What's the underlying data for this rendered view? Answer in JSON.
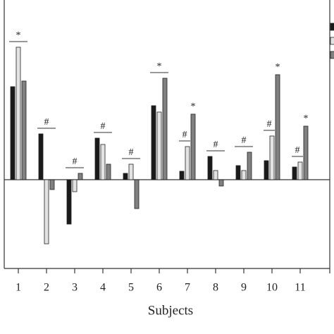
{
  "chart_data": {
    "type": "bar",
    "x_label": "Subjects",
    "categories": [
      "1",
      "2",
      "3",
      "4",
      "5",
      "6",
      "7",
      "8",
      "9",
      "10",
      "11"
    ],
    "series": [
      {
        "color": "#1a1a1a",
        "values": [
          13.2,
          6.5,
          -6.3,
          5.9,
          0.9,
          10.5,
          1.2,
          3.3,
          2.0,
          2.7,
          1.8
        ]
      },
      {
        "color": "#e3e3e3",
        "values": [
          18.8,
          -9.1,
          -1.7,
          5.0,
          2.2,
          9.6,
          4.7,
          1.3,
          1.3,
          6.2,
          2.5
        ]
      },
      {
        "color": "#808080",
        "values": [
          14.0,
          -1.4,
          0.9,
          2.2,
          -4.1,
          14.4,
          9.3,
          -0.9,
          3.9,
          14.9,
          7.6
        ]
      }
    ],
    "annotations": [
      [
        "*"
      ],
      [
        "#"
      ],
      [
        "#"
      ],
      [
        "#"
      ],
      [
        "#"
      ],
      [
        "*"
      ],
      [
        "#",
        "*"
      ],
      [
        "#"
      ],
      [
        "#"
      ],
      [
        "#",
        "*"
      ],
      [
        "#",
        "*"
      ]
    ],
    "ylim": [
      -12.6,
      25.5
    ]
  }
}
